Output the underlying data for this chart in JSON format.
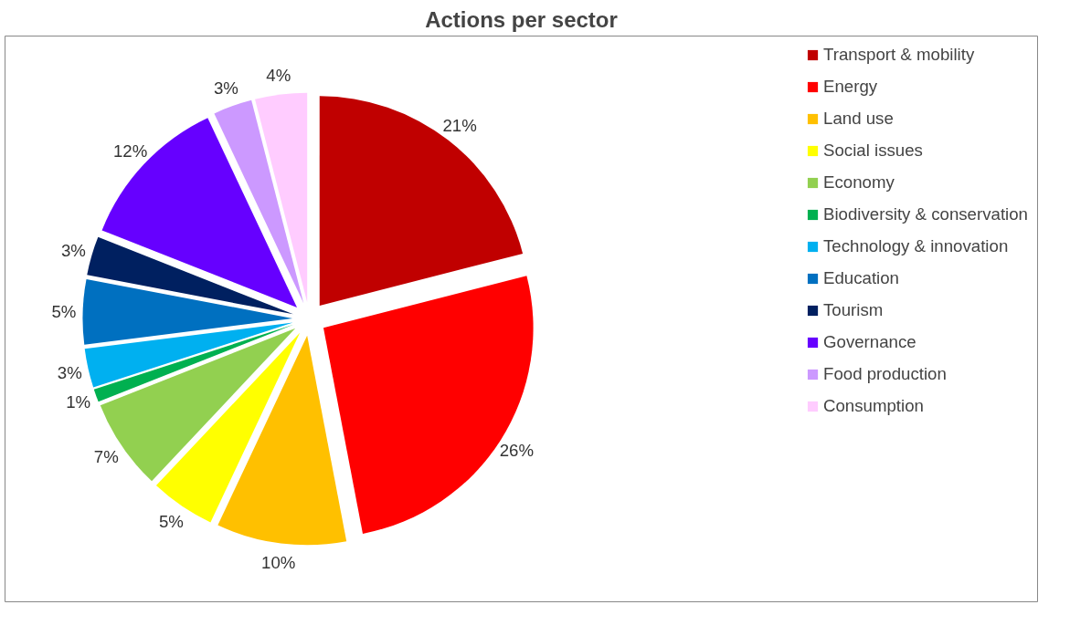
{
  "chart_data": {
    "type": "pie",
    "title": "Actions per sector",
    "categories": [
      "Transport & mobility",
      "Energy",
      "Land use",
      "Social issues",
      "Economy",
      "Biodiversity & conservation",
      "Technology & innovation",
      "Education",
      "Tourism",
      "Governance",
      "Food production",
      "Consumption"
    ],
    "values": [
      21,
      26,
      10,
      5,
      7,
      1,
      3,
      5,
      3,
      12,
      3,
      4
    ],
    "colors": [
      "#c00000",
      "#ff0000",
      "#ffc000",
      "#ffff00",
      "#92d050",
      "#00b050",
      "#00b0f0",
      "#0070c0",
      "#002060",
      "#6600ff",
      "#cc99ff",
      "#ffccff"
    ],
    "value_labels": [
      "21%",
      "26%",
      "10%",
      "5%",
      "7%",
      "1%",
      "3%",
      "5%",
      "3%",
      "12%",
      "3%",
      "4%"
    ],
    "legend": "right"
  }
}
